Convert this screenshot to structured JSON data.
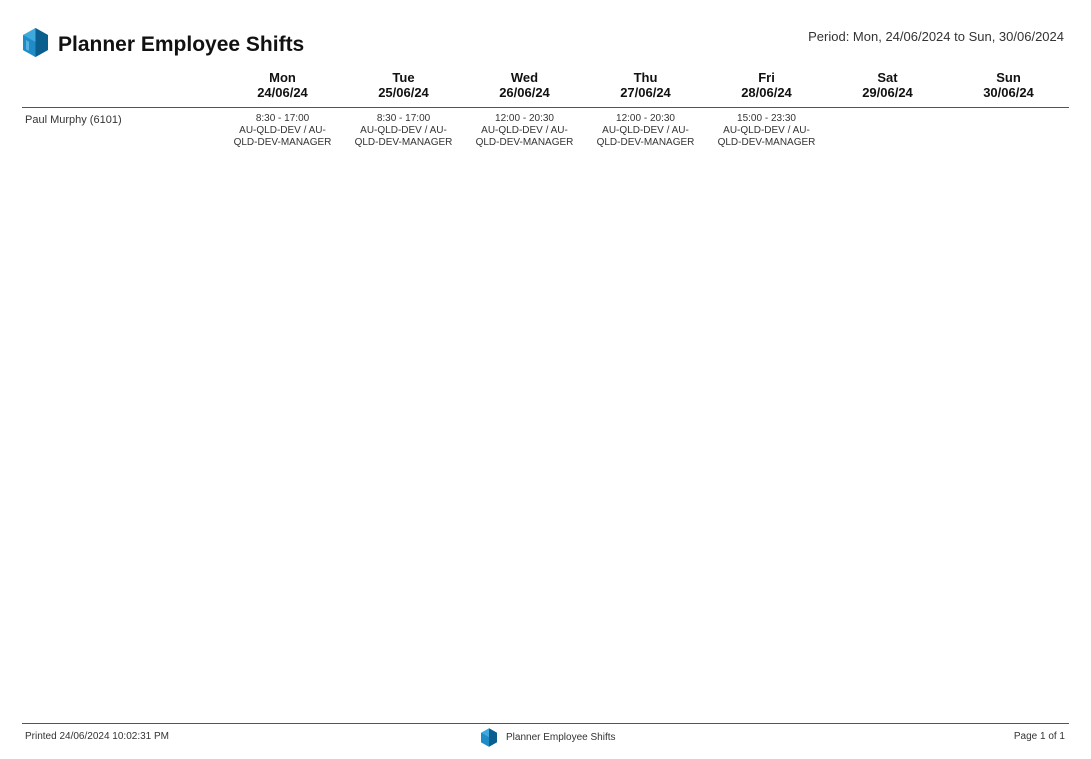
{
  "header": {
    "title": "Planner Employee Shifts",
    "period": "Period: Mon, 24/06/2024 to Sun, 30/06/2024",
    "logo_icon": "cube-logo-icon"
  },
  "days": [
    {
      "name": "Mon",
      "date": "24/06/24"
    },
    {
      "name": "Tue",
      "date": "25/06/24"
    },
    {
      "name": "Wed",
      "date": "26/06/24"
    },
    {
      "name": "Thu",
      "date": "27/06/24"
    },
    {
      "name": "Fri",
      "date": "28/06/24"
    },
    {
      "name": "Sat",
      "date": "29/06/24"
    },
    {
      "name": "Sun",
      "date": "30/06/24"
    }
  ],
  "employees": [
    {
      "name": "Paul Murphy (6101)",
      "shifts": [
        {
          "time": "8:30 - 17:00",
          "line1": "AU-QLD-DEV / AU-",
          "line2": "QLD-DEV-MANAGER"
        },
        {
          "time": "8:30 - 17:00",
          "line1": "AU-QLD-DEV / AU-",
          "line2": "QLD-DEV-MANAGER"
        },
        {
          "time": "12:00 - 20:30",
          "line1": "AU-QLD-DEV / AU-",
          "line2": "QLD-DEV-MANAGER"
        },
        {
          "time": "12:00 - 20:30",
          "line1": "AU-QLD-DEV / AU-",
          "line2": "QLD-DEV-MANAGER"
        },
        {
          "time": "15:00 - 23:30",
          "line1": "AU-QLD-DEV / AU-",
          "line2": "QLD-DEV-MANAGER"
        },
        {
          "time": "",
          "line1": "",
          "line2": ""
        },
        {
          "time": "",
          "line1": "",
          "line2": ""
        }
      ]
    }
  ],
  "footer": {
    "printed": "Printed 24/06/2024 10:02:31 PM",
    "title": "Planner Employee Shifts",
    "page": "Page 1 of 1"
  },
  "colors": {
    "logo_light": "#3fa9dd",
    "logo_dark": "#0b5f8f",
    "rule": "#555555"
  }
}
